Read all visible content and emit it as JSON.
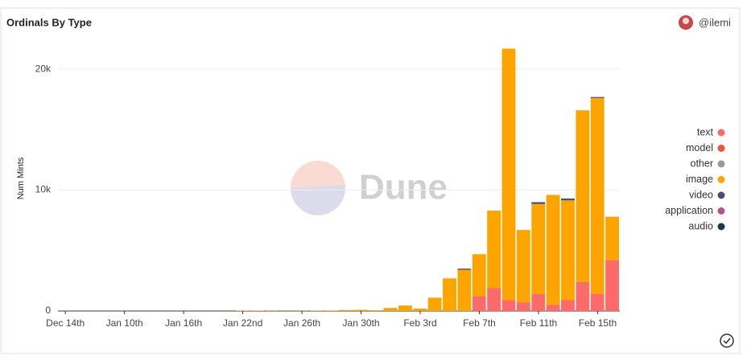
{
  "chart_data": {
    "type": "stacked_bar",
    "title": "Ordinals By Type",
    "author": "@ilemi",
    "watermark": "Dune",
    "y_label": "Num Mints",
    "categories": [
      "Dec 14th",
      null,
      null,
      null,
      "Jan 10th",
      null,
      null,
      null,
      "Jan 16th",
      null,
      null,
      null,
      "Jan 22nd",
      null,
      null,
      null,
      "Jan 26th",
      null,
      null,
      null,
      "Jan 30th",
      null,
      null,
      null,
      "Feb 3rd",
      null,
      null,
      null,
      "Feb 7th",
      null,
      null,
      null,
      "Feb 11th",
      null,
      null,
      null,
      "Feb 15th",
      null
    ],
    "ylim": [
      0,
      22000
    ],
    "yticks": [
      0,
      {
        "value": 10000,
        "label": "10k"
      },
      {
        "value": 20000,
        "label": "20k"
      }
    ],
    "grid": true,
    "legend": "right",
    "series": [
      {
        "name": "text",
        "color": "#fd6a6a",
        "values": [
          0,
          0,
          0,
          0,
          0,
          0,
          0,
          0,
          0,
          0,
          0,
          0,
          0,
          0,
          0,
          0,
          0,
          0,
          0,
          0,
          0,
          0,
          0,
          0,
          0,
          0,
          0,
          0,
          1200,
          1900,
          900,
          700,
          1400,
          500,
          900,
          2400,
          1400,
          4200
        ]
      },
      {
        "name": "model",
        "color": "#e9573f",
        "values": [
          0,
          0,
          0,
          0,
          0,
          0,
          0,
          0,
          0,
          0,
          0,
          0,
          0,
          0,
          0,
          0,
          0,
          0,
          0,
          0,
          0,
          0,
          0,
          0,
          0,
          0,
          0,
          0,
          0,
          0,
          0,
          0,
          0,
          0,
          0,
          0,
          0,
          0
        ]
      },
      {
        "name": "other",
        "color": "#999999",
        "values": [
          0,
          0,
          0,
          0,
          0,
          0,
          0,
          0,
          0,
          0,
          0,
          0,
          0,
          0,
          0,
          0,
          0,
          0,
          0,
          0,
          0,
          0,
          0,
          0,
          0,
          0,
          0,
          0,
          0,
          0,
          0,
          0,
          0,
          0,
          0,
          0,
          0,
          0
        ]
      },
      {
        "name": "image",
        "color": "#fca500",
        "values": [
          5,
          3,
          3,
          5,
          5,
          5,
          5,
          5,
          5,
          5,
          5,
          5,
          30,
          40,
          20,
          15,
          20,
          30,
          40,
          80,
          100,
          60,
          250,
          450,
          200,
          1100,
          2700,
          3400,
          3500,
          6400,
          20800,
          6000,
          7450,
          9100,
          8250,
          14200,
          16220,
          3600
        ]
      },
      {
        "name": "video",
        "color": "#4e4a78",
        "values": [
          0,
          0,
          0,
          0,
          0,
          0,
          0,
          0,
          0,
          0,
          0,
          0,
          0,
          0,
          0,
          0,
          0,
          0,
          0,
          0,
          0,
          0,
          0,
          0,
          0,
          0,
          0,
          100,
          0,
          0,
          0,
          0,
          150,
          0,
          150,
          0,
          80,
          0
        ]
      },
      {
        "name": "application",
        "color": "#b0568c",
        "values": [
          0,
          0,
          0,
          0,
          0,
          0,
          0,
          0,
          0,
          0,
          0,
          0,
          0,
          0,
          0,
          0,
          0,
          0,
          0,
          0,
          0,
          0,
          0,
          0,
          0,
          0,
          0,
          0,
          0,
          0,
          0,
          0,
          0,
          0,
          0,
          0,
          0,
          0
        ]
      },
      {
        "name": "audio",
        "color": "#1c3a4c",
        "values": [
          0,
          0,
          0,
          0,
          0,
          0,
          0,
          0,
          0,
          0,
          0,
          0,
          0,
          0,
          0,
          0,
          0,
          0,
          0,
          0,
          0,
          0,
          0,
          0,
          0,
          0,
          0,
          0,
          0,
          0,
          0,
          0,
          0,
          0,
          0,
          0,
          0,
          0
        ]
      }
    ]
  }
}
